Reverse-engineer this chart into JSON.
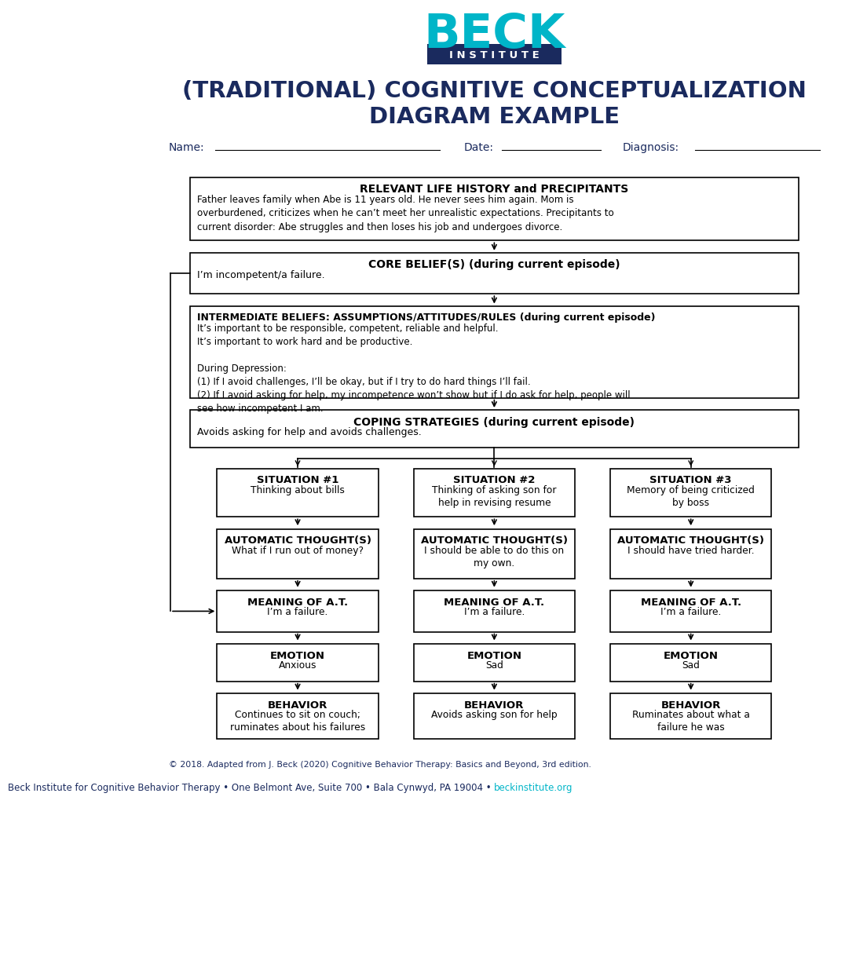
{
  "title_line1": "(TRADITIONAL) COGNITIVE CONCEPTUALIZATION",
  "title_line2": "DIAGRAM EXAMPLE",
  "title_color": "#1a2a5e",
  "background_color": "#ffffff",
  "logo_beck_color": "#00b5c8",
  "logo_institute_bg": "#1a2a5e",
  "logo_institute_text": "#ffffff",
  "fields_label_color": "#1a2a5e",
  "text_color": "#000000",
  "footer_color": "#1a2a5e",
  "link_color": "#00b5c8",
  "relevant_life_title": "RELEVANT LIFE HISTORY and PRECIPITANTS",
  "relevant_life_body": "Father leaves family when Abe is 11 years old. He never sees him again. Mom is\noverburdened, criticizes when he can’t meet her unrealistic expectations. Precipitants to\ncurrent disorder: Abe struggles and then loses his job and undergoes divorce.",
  "core_belief_title": "CORE BELIEF(S) (during current episode)",
  "core_belief_body": "I’m incompetent/a failure.",
  "intermediate_title": "INTERMEDIATE BELIEFS: ASSUMPTIONS/ATTITUDES/RULES (during current episode)",
  "intermediate_body": "It’s important to be responsible, competent, reliable and helpful.\nIt’s important to work hard and be productive.\n\nDuring Depression:\n(1) If I avoid challenges, I’ll be okay, but if I try to do hard things I’ll fail.\n(2) If I avoid asking for help, my incompetence won’t show but if I do ask for help, people will\nsee how incompetent I am.",
  "coping_title": "COPING STRATEGIES (during current episode)",
  "coping_body": "Avoids asking for help and avoids challenges.",
  "situations": [
    "SITUATION #1",
    "SITUATION #2",
    "SITUATION #3"
  ],
  "situation_bodies": [
    "Thinking about bills",
    "Thinking of asking son for\nhelp in revising resume",
    "Memory of being criticized\nby boss"
  ],
  "auto_thoughts": [
    "AUTOMATIC THOUGHT(S)",
    "AUTOMATIC THOUGHT(S)",
    "AUTOMATIC THOUGHT(S)"
  ],
  "auto_thought_bodies": [
    "What if I run out of money?",
    "I should be able to do this on\nmy own.",
    "I should have tried harder."
  ],
  "meaning_titles": [
    "MEANING OF A.T.",
    "MEANING OF A.T.",
    "MEANING OF A.T."
  ],
  "meaning_bodies": [
    "I’m a failure.",
    "I’m a failure.",
    "I’m a failure."
  ],
  "emotion_titles": [
    "EMOTION",
    "EMOTION",
    "EMOTION"
  ],
  "emotion_bodies": [
    "Anxious",
    "Sad",
    "Sad"
  ],
  "behavior_titles": [
    "BEHAVIOR",
    "BEHAVIOR",
    "BEHAVIOR"
  ],
  "behavior_bodies": [
    "Continues to sit on couch;\nruminates about his failures",
    "Avoids asking son for help",
    "Ruminates about what a\nfailure he was"
  ],
  "copyright_text": "© 2018. Adapted from J. Beck (2020) Cognitive Behavior Therapy: Basics and Beyond, 3rd edition.",
  "footer_text": "Beck Institute for Cognitive Behavior Therapy • One Belmont Ave, Suite 700 • Bala Cynwyd, PA 19004 • ",
  "footer_link": "beckinstitute.org"
}
